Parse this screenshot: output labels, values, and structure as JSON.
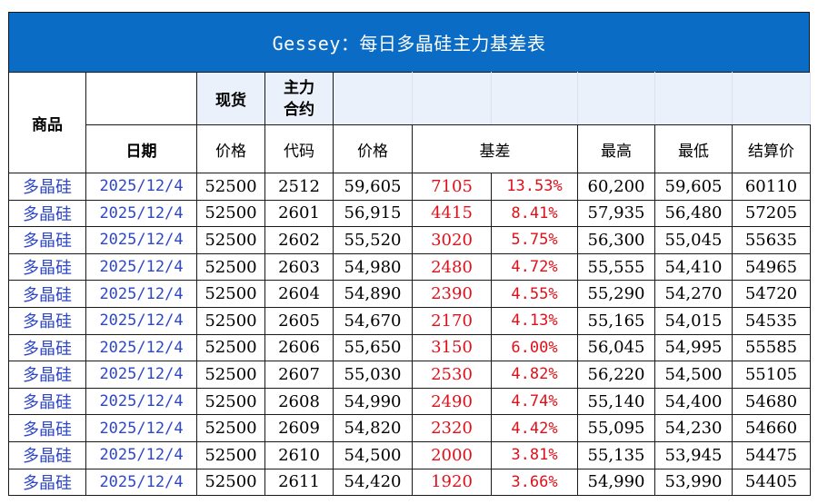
{
  "title": "Gessey：每日多晶硅主力基差表",
  "header": {
    "product": "商品",
    "spot": "现货",
    "main_contract": "主力\n合约",
    "date": "日期",
    "spot_price": "价格",
    "code": "代码",
    "price": "价格",
    "basis": "基差",
    "high": "最高",
    "low": "最低",
    "settle": "结算价"
  },
  "rows": [
    {
      "product": "多晶硅",
      "date": "2025/12/4",
      "spot": "52500",
      "code": "2512",
      "price": "59,605",
      "basis": "7105",
      "basis_pct": "13.53%",
      "high": "60,200",
      "low": "59,605",
      "settle": "60110"
    },
    {
      "product": "多晶硅",
      "date": "2025/12/4",
      "spot": "52500",
      "code": "2601",
      "price": "56,915",
      "basis": "4415",
      "basis_pct": "8.41%",
      "high": "57,935",
      "low": "56,480",
      "settle": "57205"
    },
    {
      "product": "多晶硅",
      "date": "2025/12/4",
      "spot": "52500",
      "code": "2602",
      "price": "55,520",
      "basis": "3020",
      "basis_pct": "5.75%",
      "high": "56,300",
      "low": "55,045",
      "settle": "55635"
    },
    {
      "product": "多晶硅",
      "date": "2025/12/4",
      "spot": "52500",
      "code": "2603",
      "price": "54,980",
      "basis": "2480",
      "basis_pct": "4.72%",
      "high": "55,555",
      "low": "54,410",
      "settle": "54965"
    },
    {
      "product": "多晶硅",
      "date": "2025/12/4",
      "spot": "52500",
      "code": "2604",
      "price": "54,890",
      "basis": "2390",
      "basis_pct": "4.55%",
      "high": "55,290",
      "low": "54,270",
      "settle": "54720"
    },
    {
      "product": "多晶硅",
      "date": "2025/12/4",
      "spot": "52500",
      "code": "2605",
      "price": "54,670",
      "basis": "2170",
      "basis_pct": "4.13%",
      "high": "55,165",
      "low": "54,015",
      "settle": "54535"
    },
    {
      "product": "多晶硅",
      "date": "2025/12/4",
      "spot": "52500",
      "code": "2606",
      "price": "55,650",
      "basis": "3150",
      "basis_pct": "6.00%",
      "high": "56,045",
      "low": "54,995",
      "settle": "55585"
    },
    {
      "product": "多晶硅",
      "date": "2025/12/4",
      "spot": "52500",
      "code": "2607",
      "price": "55,030",
      "basis": "2530",
      "basis_pct": "4.82%",
      "high": "56,220",
      "low": "54,500",
      "settle": "55105"
    },
    {
      "product": "多晶硅",
      "date": "2025/12/4",
      "spot": "52500",
      "code": "2608",
      "price": "54,990",
      "basis": "2490",
      "basis_pct": "4.74%",
      "high": "55,140",
      "low": "54,400",
      "settle": "54680"
    },
    {
      "product": "多晶硅",
      "date": "2025/12/4",
      "spot": "52500",
      "code": "2609",
      "price": "54,820",
      "basis": "2320",
      "basis_pct": "4.42%",
      "high": "55,095",
      "low": "54,230",
      "settle": "54660"
    },
    {
      "product": "多晶硅",
      "date": "2025/12/4",
      "spot": "52500",
      "code": "2610",
      "price": "54,500",
      "basis": "2000",
      "basis_pct": "3.81%",
      "high": "55,135",
      "low": "53,945",
      "settle": "54475"
    },
    {
      "product": "多晶硅",
      "date": "2025/12/4",
      "spot": "52500",
      "code": "2611",
      "price": "54,420",
      "basis": "1920",
      "basis_pct": "3.66%",
      "high": "54,990",
      "low": "53,990",
      "settle": "54405"
    }
  ],
  "colors": {
    "title_bg": "#0A6CC4",
    "header_shade": "#EAF1FB",
    "date_text": "#2E47C6",
    "basis_text": "#E0101A"
  }
}
